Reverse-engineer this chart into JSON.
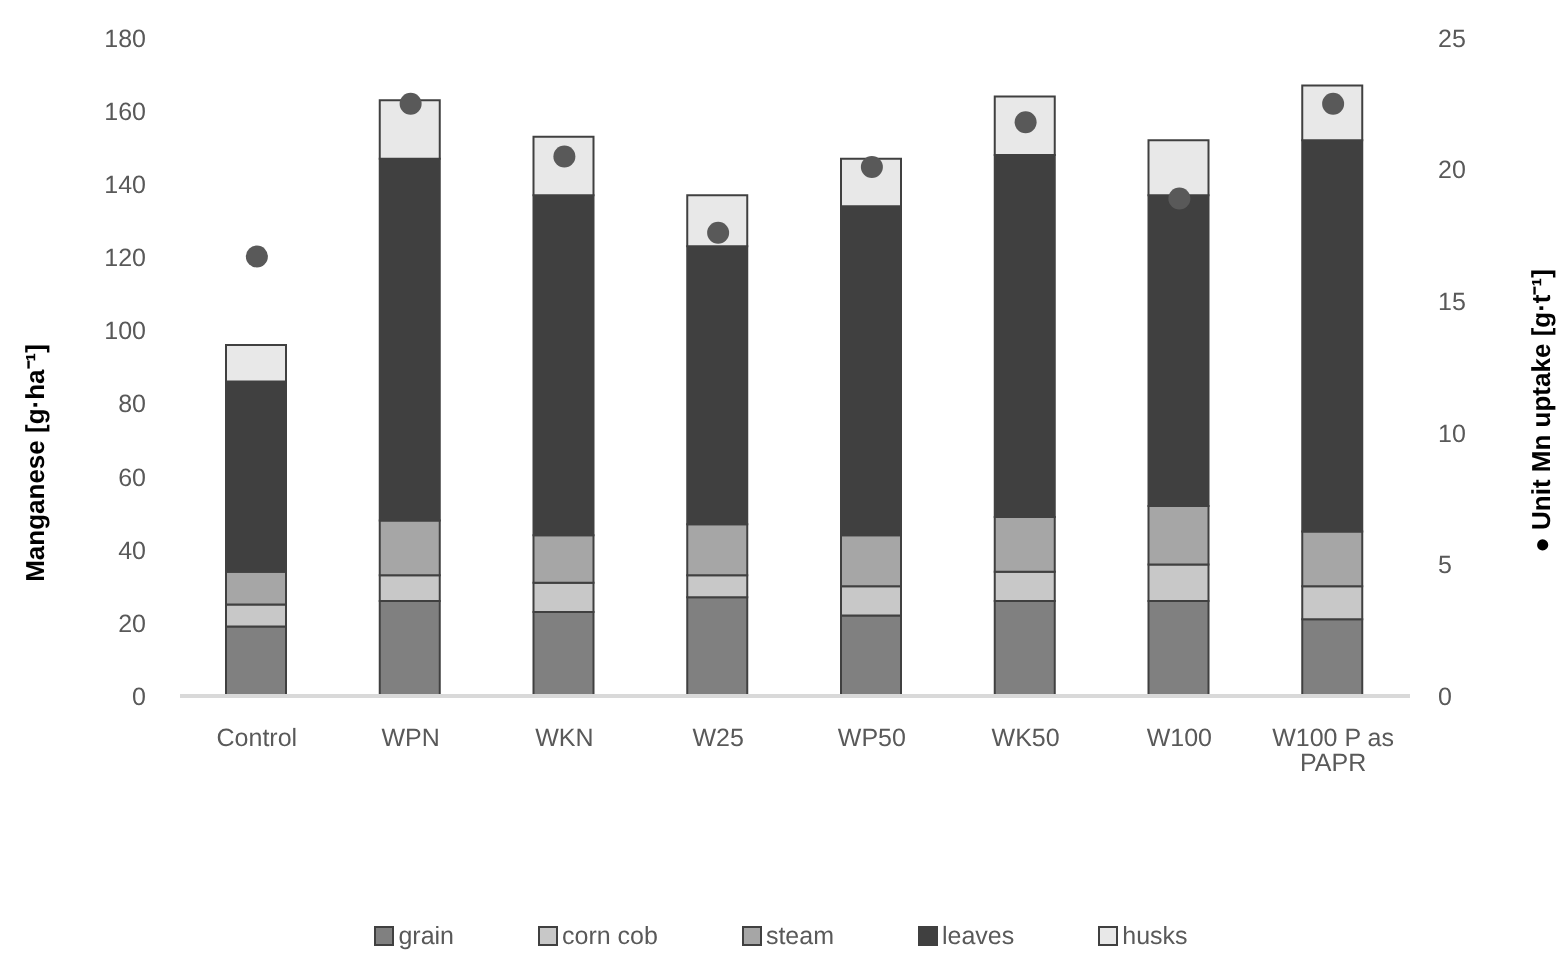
{
  "chart_data": {
    "type": "bar",
    "stacked": true,
    "categories": [
      "Control",
      "WPN",
      "WKN",
      "W25",
      "WP50",
      "WK50",
      "W100",
      "W100 P as PAPR"
    ],
    "series": [
      {
        "name": "grain",
        "color": "#808080",
        "values": [
          19,
          26,
          23,
          27,
          22,
          26,
          26,
          21
        ]
      },
      {
        "name": "corn cob",
        "color": "#c8c8c8",
        "values": [
          6,
          7,
          8,
          6,
          8,
          8,
          10,
          9
        ]
      },
      {
        "name": "steam",
        "color": "#a6a6a6",
        "values": [
          9,
          15,
          13,
          14,
          14,
          15,
          16,
          15
        ]
      },
      {
        "name": "leaves",
        "color": "#404040",
        "values": [
          52,
          99,
          93,
          76,
          90,
          99,
          85,
          107
        ]
      },
      {
        "name": "husks",
        "color": "#e8e8e8",
        "values": [
          10,
          16,
          16,
          14,
          13,
          16,
          15,
          15
        ]
      },
      {
        "type": "scatter",
        "axis": "y2",
        "color": "#595959",
        "values": [
          16.7,
          22.5,
          20.5,
          17.6,
          20.1,
          21.8,
          18.9,
          22.5
        ]
      }
    ],
    "ylabel": "Manganese [g·ha⁻¹]",
    "y2label": "● Unit Mn uptake [g·t⁻¹]",
    "ylim": [
      0,
      180
    ],
    "yticks": [
      0,
      20,
      40,
      60,
      80,
      100,
      120,
      140,
      160,
      180
    ],
    "y2lim": [
      0,
      25
    ],
    "y2ticks": [
      0,
      5,
      10,
      15,
      20,
      25
    ],
    "legend": "bottom",
    "marker": "circle"
  }
}
